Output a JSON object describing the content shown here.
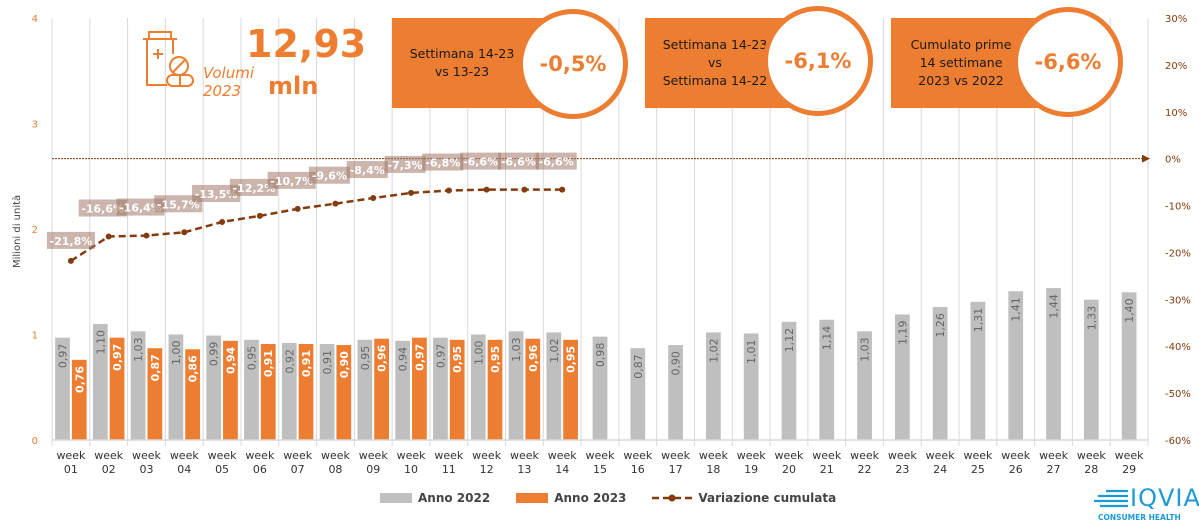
{
  "chart_data": {
    "type": "bar",
    "title": "",
    "ylabel": "Milioni di unità",
    "ylim": [
      0,
      4
    ],
    "y_ticks": [
      "0",
      "1",
      "2",
      "3",
      "4"
    ],
    "y2lim": [
      -60,
      30
    ],
    "y2_ticks": [
      "30%",
      "20%",
      "10%",
      "0%",
      "-10%",
      "-20%",
      "-30%",
      "-40%",
      "-50%",
      "-60%"
    ],
    "grid": "vertical",
    "categories": [
      "week 01",
      "week 02",
      "week 03",
      "week 04",
      "week 05",
      "week 06",
      "week 07",
      "week 08",
      "week 09",
      "week 10",
      "week 11",
      "week 12",
      "week 13",
      "week 14",
      "week 15",
      "week 16",
      "week 17",
      "week 18",
      "week 19",
      "week 20",
      "week 21",
      "week 22",
      "week 23",
      "week 24",
      "week 25",
      "week 26",
      "week 27",
      "week 28",
      "week 29"
    ],
    "category_lines": [
      [
        "week",
        "01"
      ],
      [
        "week",
        "02"
      ],
      [
        "week",
        "03"
      ],
      [
        "week",
        "04"
      ],
      [
        "week",
        "05"
      ],
      [
        "week",
        "06"
      ],
      [
        "week",
        "07"
      ],
      [
        "week",
        "08"
      ],
      [
        "week",
        "09"
      ],
      [
        "week",
        "10"
      ],
      [
        "week",
        "11"
      ],
      [
        "week",
        "12"
      ],
      [
        "week",
        "13"
      ],
      [
        "week",
        "14"
      ],
      [
        "week",
        "15"
      ],
      [
        "week",
        "16"
      ],
      [
        "week",
        "17"
      ],
      [
        "week",
        "18"
      ],
      [
        "week",
        "19"
      ],
      [
        "week",
        "20"
      ],
      [
        "week",
        "21"
      ],
      [
        "week",
        "22"
      ],
      [
        "week",
        "23"
      ],
      [
        "week",
        "24"
      ],
      [
        "week",
        "25"
      ],
      [
        "week",
        "26"
      ],
      [
        "week",
        "27"
      ],
      [
        "week",
        "28"
      ],
      [
        "week",
        "29"
      ]
    ],
    "series": [
      {
        "name": "Anno 2022",
        "type": "bar",
        "color": "#BFBFBF",
        "axis": "left",
        "values": [
          0.97,
          1.1,
          1.03,
          1.0,
          0.99,
          0.95,
          0.92,
          0.91,
          0.95,
          0.94,
          0.97,
          1.0,
          1.03,
          1.02,
          0.98,
          0.87,
          0.9,
          1.02,
          1.01,
          1.12,
          1.14,
          1.03,
          1.19,
          1.26,
          1.31,
          1.41,
          1.44,
          1.33,
          1.4
        ],
        "labels": [
          "0,97",
          "1,10",
          "1,03",
          "1,00",
          "0,99",
          "0,95",
          "0,92",
          "0,91",
          "0,95",
          "0,94",
          "0,97",
          "1,00",
          "1,03",
          "1,02",
          "0,98",
          "0,87",
          "0,90",
          "1,02",
          "1,01",
          "1,12",
          "1,14",
          "1,03",
          "1,19",
          "1,26",
          "1,31",
          "1,41",
          "1,44",
          "1,33",
          "1,40"
        ]
      },
      {
        "name": "Anno 2023",
        "type": "bar",
        "color": "#ED7D31",
        "axis": "left",
        "values": [
          0.76,
          0.97,
          0.87,
          0.86,
          0.94,
          0.91,
          0.91,
          0.9,
          0.96,
          0.97,
          0.95,
          0.95,
          0.96,
          0.95
        ],
        "labels": [
          "0,76",
          "0,97",
          "0,87",
          "0,86",
          "0,94",
          "0,91",
          "0,91",
          "0,90",
          "0,96",
          "0,97",
          "0,95",
          "0,95",
          "0,96",
          "0,95"
        ]
      },
      {
        "name": "Variazione cumulata",
        "type": "line",
        "color": "#843C0C",
        "axis": "right",
        "values": [
          -21.8,
          -16.6,
          -16.4,
          -15.7,
          -13.5,
          -12.2,
          -10.7,
          -9.6,
          -8.4,
          -7.3,
          -6.8,
          -6.6,
          -6.6,
          -6.6
        ],
        "labels": [
          "-21,8%",
          "-16,6%",
          "-16,4%",
          "-15,7%",
          "-13,5%",
          "-12,2%",
          "-10,7%",
          "-9,6%",
          "-8,4%",
          "-7,3%",
          "-6,8%",
          "-6,6%",
          "-6,6%",
          "-6,6%"
        ]
      }
    ],
    "legend": [
      "Anno 2022",
      "Anno 2023",
      "Variazione cumulata"
    ],
    "legend_position": "bottom"
  },
  "kpi": {
    "volume_value": "12,93",
    "volume_unit": "mln",
    "volume_label_1": "Volumi",
    "volume_label_2": "2023"
  },
  "callouts": [
    {
      "lines": [
        "Settimana 14-23",
        "vs 13-23"
      ],
      "value": "-0,5%"
    },
    {
      "lines": [
        "Settimana 14-23",
        "vs",
        "Settimana 14-22"
      ],
      "value": "-6,1%"
    },
    {
      "lines": [
        "Cumulato prime",
        "14 settimane",
        "2023 vs 2022"
      ],
      "value": "-6,6%"
    }
  ],
  "brand": {
    "name": "IQVIA",
    "sub": "CONSUMER HEALTH",
    "accent": "#ED7D31",
    "logo_color": "#1C9AD6"
  }
}
